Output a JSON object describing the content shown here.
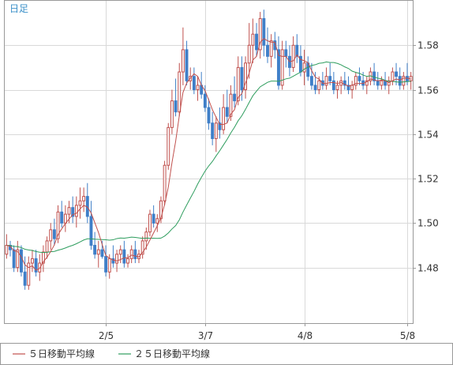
{
  "chart_data": {
    "type": "candlestick",
    "period_label": "日足",
    "ylim": [
      1.455,
      1.6
    ],
    "yticks": [
      1.48,
      1.5,
      1.52,
      1.54,
      1.56,
      1.58
    ],
    "ytick_labels": [
      "1.48",
      "1.50",
      "1.52",
      "1.54",
      "1.56",
      "1.58"
    ],
    "xticks": [
      {
        "index": 27,
        "label": "2/5"
      },
      {
        "index": 54,
        "label": "3/7"
      },
      {
        "index": 81,
        "label": "4/8"
      },
      {
        "index": 109,
        "label": "5/8"
      }
    ],
    "grid": true,
    "colors": {
      "up": "#c0504d",
      "down": "#3f7fc8",
      "ma5": "#c0504d",
      "ma25": "#2e9d5e",
      "grid": "#d9d9d9",
      "border": "#999999",
      "title": "#3a8fc8"
    },
    "legend": [
      {
        "key": "ma5",
        "label": "５日移動平均線",
        "color": "#c0504d"
      },
      {
        "key": "ma25",
        "label": "２５日移動平均線",
        "color": "#2e9d5e"
      }
    ],
    "candles": [
      [
        1.486,
        1.495,
        1.484,
        1.49
      ],
      [
        1.49,
        1.492,
        1.485,
        1.488
      ],
      [
        1.488,
        1.49,
        1.478,
        1.48
      ],
      [
        1.48,
        1.492,
        1.478,
        1.488
      ],
      [
        1.488,
        1.49,
        1.476,
        1.478
      ],
      [
        1.478,
        1.485,
        1.47,
        1.472
      ],
      [
        1.472,
        1.485,
        1.47,
        1.482
      ],
      [
        1.482,
        1.488,
        1.478,
        1.484
      ],
      [
        1.484,
        1.488,
        1.476,
        1.478
      ],
      [
        1.478,
        1.486,
        1.474,
        1.482
      ],
      [
        1.482,
        1.49,
        1.478,
        1.487
      ],
      [
        1.487,
        1.494,
        1.484,
        1.492
      ],
      [
        1.492,
        1.5,
        1.488,
        1.497
      ],
      [
        1.497,
        1.502,
        1.49,
        1.493
      ],
      [
        1.493,
        1.508,
        1.491,
        1.505
      ],
      [
        1.505,
        1.51,
        1.498,
        1.5
      ],
      [
        1.5,
        1.508,
        1.496,
        1.504
      ],
      [
        1.504,
        1.51,
        1.5,
        1.507
      ],
      [
        1.507,
        1.512,
        1.5,
        1.503
      ],
      [
        1.503,
        1.512,
        1.498,
        1.508
      ],
      [
        1.508,
        1.516,
        1.502,
        1.51
      ],
      [
        1.51,
        1.516,
        1.505,
        1.512
      ],
      [
        1.512,
        1.518,
        1.5,
        1.503
      ],
      [
        1.503,
        1.51,
        1.488,
        1.49
      ],
      [
        1.49,
        1.496,
        1.484,
        1.486
      ],
      [
        1.486,
        1.492,
        1.48,
        1.488
      ],
      [
        1.488,
        1.492,
        1.484,
        1.485
      ],
      [
        1.485,
        1.49,
        1.476,
        1.478
      ],
      [
        1.478,
        1.486,
        1.475,
        1.484
      ],
      [
        1.484,
        1.49,
        1.48,
        1.482
      ],
      [
        1.482,
        1.488,
        1.478,
        1.486
      ],
      [
        1.486,
        1.49,
        1.482,
        1.488
      ],
      [
        1.488,
        1.492,
        1.48,
        1.482
      ],
      [
        1.482,
        1.486,
        1.48,
        1.484
      ],
      [
        1.484,
        1.49,
        1.482,
        1.488
      ],
      [
        1.488,
        1.492,
        1.482,
        1.484
      ],
      [
        1.484,
        1.488,
        1.482,
        1.486
      ],
      [
        1.486,
        1.494,
        1.484,
        1.492
      ],
      [
        1.492,
        1.498,
        1.488,
        1.496
      ],
      [
        1.496,
        1.506,
        1.494,
        1.504
      ],
      [
        1.504,
        1.508,
        1.498,
        1.5
      ],
      [
        1.5,
        1.504,
        1.496,
        1.502
      ],
      [
        1.502,
        1.512,
        1.5,
        1.51
      ],
      [
        1.51,
        1.528,
        1.508,
        1.526
      ],
      [
        1.526,
        1.545,
        1.524,
        1.543
      ],
      [
        1.543,
        1.56,
        1.54,
        1.555
      ],
      [
        1.555,
        1.565,
        1.548,
        1.55
      ],
      [
        1.55,
        1.572,
        1.548,
        1.568
      ],
      [
        1.568,
        1.588,
        1.562,
        1.578
      ],
      [
        1.578,
        1.582,
        1.562,
        1.564
      ],
      [
        1.564,
        1.57,
        1.56,
        1.566
      ],
      [
        1.566,
        1.57,
        1.558,
        1.56
      ],
      [
        1.56,
        1.566,
        1.555,
        1.562
      ],
      [
        1.562,
        1.568,
        1.556,
        1.558
      ],
      [
        1.558,
        1.562,
        1.55,
        1.552
      ],
      [
        1.552,
        1.556,
        1.542,
        1.545
      ],
      [
        1.545,
        1.55,
        1.535,
        1.538
      ],
      [
        1.538,
        1.548,
        1.532,
        1.545
      ],
      [
        1.545,
        1.552,
        1.538,
        1.542
      ],
      [
        1.542,
        1.558,
        1.54,
        1.552
      ],
      [
        1.552,
        1.56,
        1.545,
        1.548
      ],
      [
        1.548,
        1.562,
        1.546,
        1.558
      ],
      [
        1.558,
        1.566,
        1.552,
        1.555
      ],
      [
        1.555,
        1.575,
        1.553,
        1.57
      ],
      [
        1.57,
        1.575,
        1.555,
        1.56
      ],
      [
        1.56,
        1.575,
        1.556,
        1.572
      ],
      [
        1.572,
        1.59,
        1.565,
        1.58
      ],
      [
        1.58,
        1.592,
        1.572,
        1.585
      ],
      [
        1.585,
        1.59,
        1.575,
        1.578
      ],
      [
        1.578,
        1.595,
        1.574,
        1.592
      ],
      [
        1.592,
        1.596,
        1.575,
        1.58
      ],
      [
        1.58,
        1.588,
        1.572,
        1.575
      ],
      [
        1.575,
        1.585,
        1.57,
        1.582
      ],
      [
        1.582,
        1.586,
        1.574,
        1.578
      ],
      [
        1.578,
        1.584,
        1.56,
        1.562
      ],
      [
        1.562,
        1.582,
        1.56,
        1.578
      ],
      [
        1.578,
        1.582,
        1.57,
        1.575
      ],
      [
        1.575,
        1.58,
        1.566,
        1.57
      ],
      [
        1.57,
        1.584,
        1.568,
        1.58
      ],
      [
        1.58,
        1.585,
        1.572,
        1.575
      ],
      [
        1.575,
        1.58,
        1.566,
        1.568
      ],
      [
        1.568,
        1.578,
        1.562,
        1.572
      ],
      [
        1.572,
        1.575,
        1.564,
        1.566
      ],
      [
        1.566,
        1.572,
        1.56,
        1.562
      ],
      [
        1.562,
        1.568,
        1.558,
        1.56
      ],
      [
        1.56,
        1.566,
        1.558,
        1.564
      ],
      [
        1.564,
        1.568,
        1.56,
        1.562
      ],
      [
        1.562,
        1.57,
        1.56,
        1.566
      ],
      [
        1.566,
        1.572,
        1.562,
        1.564
      ],
      [
        1.564,
        1.568,
        1.558,
        1.56
      ],
      [
        1.56,
        1.564,
        1.556,
        1.562
      ],
      [
        1.562,
        1.566,
        1.558,
        1.564
      ],
      [
        1.564,
        1.568,
        1.56,
        1.562
      ],
      [
        1.562,
        1.566,
        1.558,
        1.56
      ],
      [
        1.56,
        1.564,
        1.556,
        1.562
      ],
      [
        1.562,
        1.568,
        1.56,
        1.566
      ],
      [
        1.566,
        1.57,
        1.562,
        1.564
      ],
      [
        1.564,
        1.568,
        1.56,
        1.562
      ],
      [
        1.562,
        1.566,
        1.558,
        1.564
      ],
      [
        1.564,
        1.57,
        1.562,
        1.568
      ],
      [
        1.568,
        1.572,
        1.562,
        1.564
      ],
      [
        1.564,
        1.568,
        1.56,
        1.562
      ],
      [
        1.562,
        1.566,
        1.56,
        1.564
      ],
      [
        1.564,
        1.568,
        1.56,
        1.562
      ],
      [
        1.562,
        1.566,
        1.558,
        1.564
      ],
      [
        1.564,
        1.57,
        1.562,
        1.568
      ],
      [
        1.568,
        1.572,
        1.562,
        1.566
      ],
      [
        1.566,
        1.57,
        1.56,
        1.562
      ],
      [
        1.562,
        1.568,
        1.56,
        1.566
      ],
      [
        1.566,
        1.572,
        1.562,
        1.564
      ],
      [
        1.564,
        1.568,
        1.56,
        1.566
      ]
    ],
    "ma25_start": 1.49
  }
}
